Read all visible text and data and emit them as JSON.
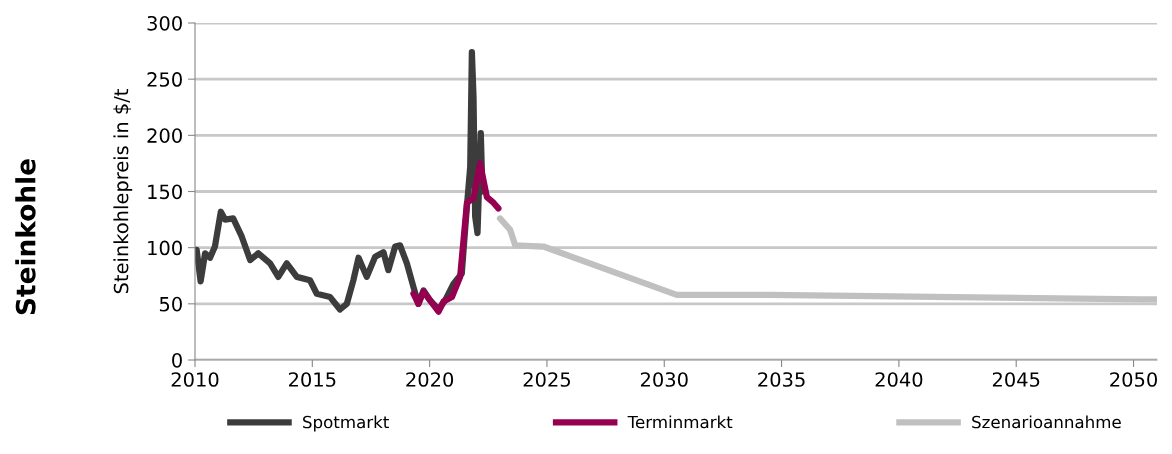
{
  "chart_data": {
    "type": "line",
    "title": "Steinkohle",
    "ylabel": "Steinkohlepreis in $/t",
    "xlim": [
      2010,
      2051
    ],
    "xticks": [
      2010,
      2015,
      2020,
      2025,
      2030,
      2035,
      2040,
      2045,
      2050
    ],
    "ylim": [
      0,
      300
    ],
    "yticks": [
      0,
      50,
      100,
      150,
      200,
      250,
      300
    ],
    "grid": "y",
    "legend": "bottom",
    "marker": "none",
    "line_style": "solid",
    "series": [
      {
        "name": "Spotmarkt",
        "color": "#3c3c3c",
        "x": [
          2010.0,
          2010.07,
          2010.24,
          2010.43,
          2010.64,
          2010.85,
          2011.1,
          2011.28,
          2011.63,
          2011.99,
          2012.35,
          2012.7,
          2013.2,
          2013.55,
          2013.91,
          2014.34,
          2014.9,
          2015.19,
          2015.76,
          2016.18,
          2016.47,
          2016.75,
          2016.97,
          2017.32,
          2017.68,
          2018.03,
          2018.24,
          2018.53,
          2018.74,
          2019.03,
          2019.31,
          2019.52,
          2019.74,
          2020.02,
          2020.38,
          2020.66,
          2021.02,
          2021.37,
          2021.59,
          2021.73,
          2021.8,
          2021.87,
          2021.94,
          2022.04,
          2022.18,
          2022.25
        ],
        "values": [
          98,
          98,
          70,
          95,
          91,
          101,
          132,
          125,
          126,
          110,
          89,
          95,
          86,
          74,
          86,
          74,
          71,
          59,
          56,
          45,
          50,
          71,
          91,
          74,
          92,
          96,
          80,
          101,
          102,
          86,
          65,
          50,
          62,
          53,
          45,
          53,
          68,
          77,
          137,
          172,
          274,
          234,
          128,
          113,
          202,
          150
        ]
      },
      {
        "name": "Terminmarkt",
        "color": "#960050",
        "x": [
          2019.31,
          2019.52,
          2019.74,
          2020.02,
          2020.38,
          2020.59,
          2020.95,
          2021.3,
          2021.59,
          2021.87,
          2022.15,
          2022.44,
          2022.72,
          2022.93
        ],
        "values": [
          59,
          50,
          61,
          53,
          43,
          52,
          56,
          74,
          140,
          144,
          175,
          145,
          140,
          135
        ]
      },
      {
        "name": "Szenarioannahme",
        "color": "#c0c0c0",
        "x": [
          2023.0,
          2023.43,
          2023.65,
          2024.85,
          2030.53,
          2034.52,
          2042.32,
          2050.33,
          2051.0
        ],
        "values": [
          126,
          116,
          102,
          101,
          58,
          58,
          56,
          54,
          54
        ]
      }
    ]
  }
}
